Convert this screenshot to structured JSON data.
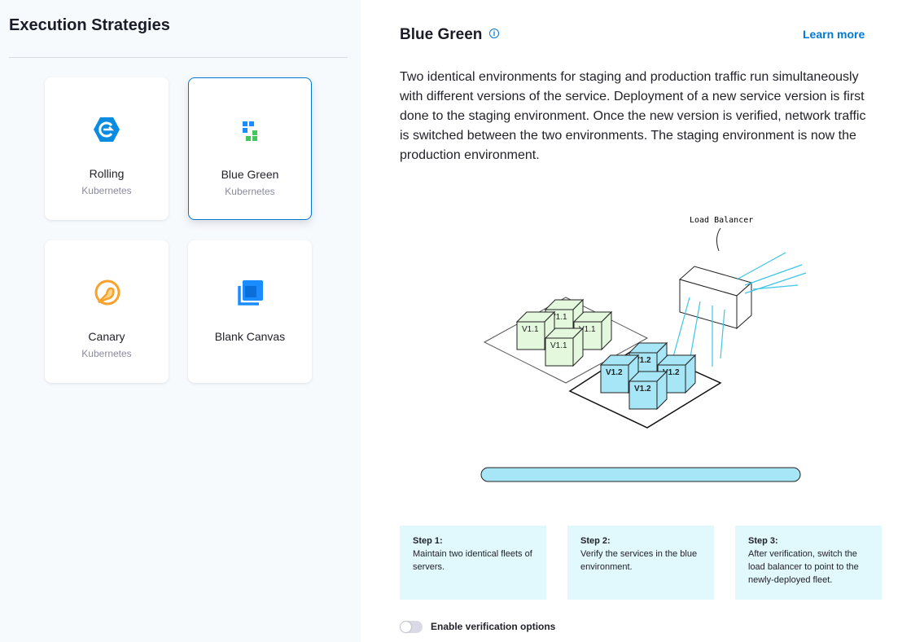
{
  "sidebar": {
    "title": "Execution Strategies",
    "cards": [
      {
        "name": "Rolling",
        "sub": "Kubernetes",
        "icon": "rolling-icon"
      },
      {
        "name": "Blue Green",
        "sub": "Kubernetes",
        "icon": "blue-green-icon",
        "selected": true
      },
      {
        "name": "Canary",
        "sub": "Kubernetes",
        "icon": "canary-icon"
      },
      {
        "name": "Blank Canvas",
        "icon": "blank-canvas-icon"
      }
    ]
  },
  "main": {
    "title": "Blue Green",
    "learn_more": "Learn more",
    "description": "Two identical environments for staging and production traffic run simultaneously with different versions of the service. Deployment of a new service version is first done to the staging environment. Once the new version is verified, network traffic is switched between the two environments. The staging environment is now the production environment.",
    "diagram": {
      "load_balancer": "Load Balancer",
      "old_version": "V1.1",
      "new_version": "V1.2"
    },
    "steps": [
      {
        "title": "Step 1:",
        "text": "Maintain two identical fleets of servers."
      },
      {
        "title": "Step 2:",
        "text": "Verify the services in the blue environment."
      },
      {
        "title": "Step 3:",
        "text": "After verification, switch the load balancer to point to the newly-deployed fleet."
      }
    ],
    "toggle": {
      "label": "Enable verification options",
      "on": false
    }
  },
  "colors": {
    "accent": "#0278d5",
    "step_bg": "#e1f8fc",
    "green_box": "#e3f8dc",
    "blue_box": "#a6e6f6"
  }
}
